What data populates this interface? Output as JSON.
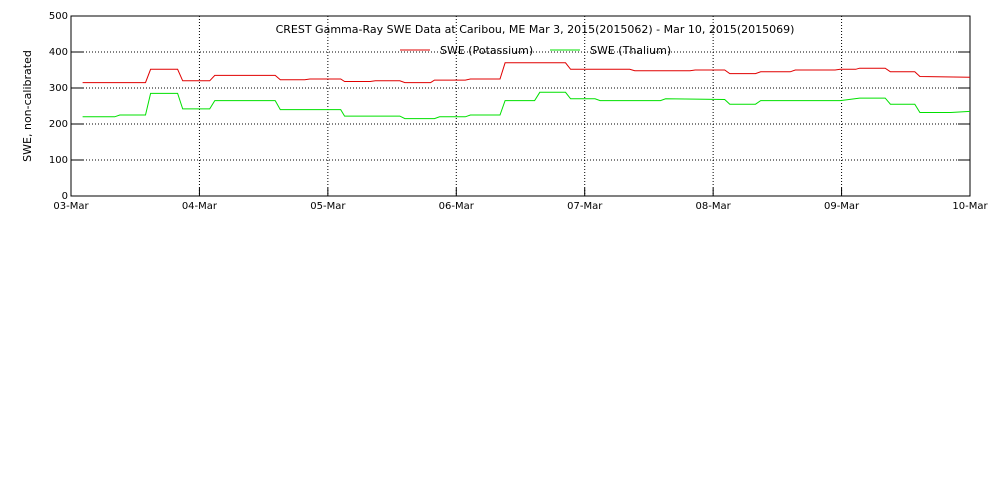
{
  "chart_data": {
    "type": "line",
    "title": "CREST Gamma-Ray SWE Data at Caribou, ME   Mar  3, 2015(2015062) - Mar 10, 2015(2015069)",
    "y_label": "SWE, non-calibrated",
    "xlim": [
      0,
      7
    ],
    "xticks": [
      {
        "value": 0,
        "label": "03-Mar"
      },
      {
        "value": 1,
        "label": "04-Mar"
      },
      {
        "value": 2,
        "label": "05-Mar"
      },
      {
        "value": 3,
        "label": "06-Mar"
      },
      {
        "value": 4,
        "label": "07-Mar"
      },
      {
        "value": 5,
        "label": "08-Mar"
      },
      {
        "value": 6,
        "label": "09-Mar"
      },
      {
        "value": 7,
        "label": "10-Mar"
      }
    ],
    "ylim": [
      0,
      500
    ],
    "yticks": [
      0,
      100,
      200,
      300,
      400,
      500
    ],
    "grid": true,
    "series": [
      {
        "name": "SWE (Potassium)",
        "color": "#e00000",
        "x": [
          0.09,
          0.58,
          0.62,
          0.83,
          0.87,
          1.08,
          1.12,
          1.59,
          1.63,
          1.82,
          1.86,
          2.1,
          2.13,
          2.33,
          2.37,
          2.56,
          2.6,
          2.8,
          2.83,
          3.07,
          3.11,
          3.34,
          3.38,
          3.85,
          3.89,
          4.35,
          4.39,
          4.82,
          4.86,
          5.09,
          5.13,
          5.33,
          5.37,
          5.6,
          5.64,
          5.95,
          5.99,
          6.11,
          6.14,
          6.34,
          6.38,
          6.57,
          6.61,
          7.0
        ],
        "values": [
          315,
          315,
          352,
          352,
          320,
          320,
          335,
          335,
          323,
          323,
          325,
          325,
          318,
          318,
          320,
          320,
          315,
          315,
          322,
          322,
          325,
          325,
          370,
          370,
          352,
          352,
          348,
          348,
          350,
          350,
          340,
          340,
          345,
          345,
          350,
          350,
          352,
          352,
          355,
          355,
          345,
          345,
          332,
          330
        ]
      },
      {
        "name": "SWE (Thalium)",
        "color": "#00e000",
        "x": [
          0.09,
          0.34,
          0.38,
          0.58,
          0.62,
          0.83,
          0.87,
          1.08,
          1.12,
          1.59,
          1.63,
          2.1,
          2.13,
          2.56,
          2.6,
          2.83,
          2.87,
          3.07,
          3.11,
          3.34,
          3.38,
          3.61,
          3.65,
          3.85,
          3.89,
          4.08,
          4.12,
          4.59,
          4.63,
          5.09,
          5.13,
          5.33,
          5.37,
          5.99,
          6.14,
          6.34,
          6.38,
          6.57,
          6.61,
          6.85,
          7.0
        ],
        "values": [
          220,
          220,
          225,
          225,
          285,
          285,
          242,
          242,
          265,
          265,
          240,
          240,
          222,
          222,
          215,
          215,
          220,
          220,
          225,
          225,
          265,
          265,
          288,
          288,
          270,
          270,
          265,
          265,
          270,
          268,
          255,
          255,
          265,
          265,
          272,
          272,
          255,
          255,
          232,
          232,
          235
        ]
      }
    ]
  }
}
